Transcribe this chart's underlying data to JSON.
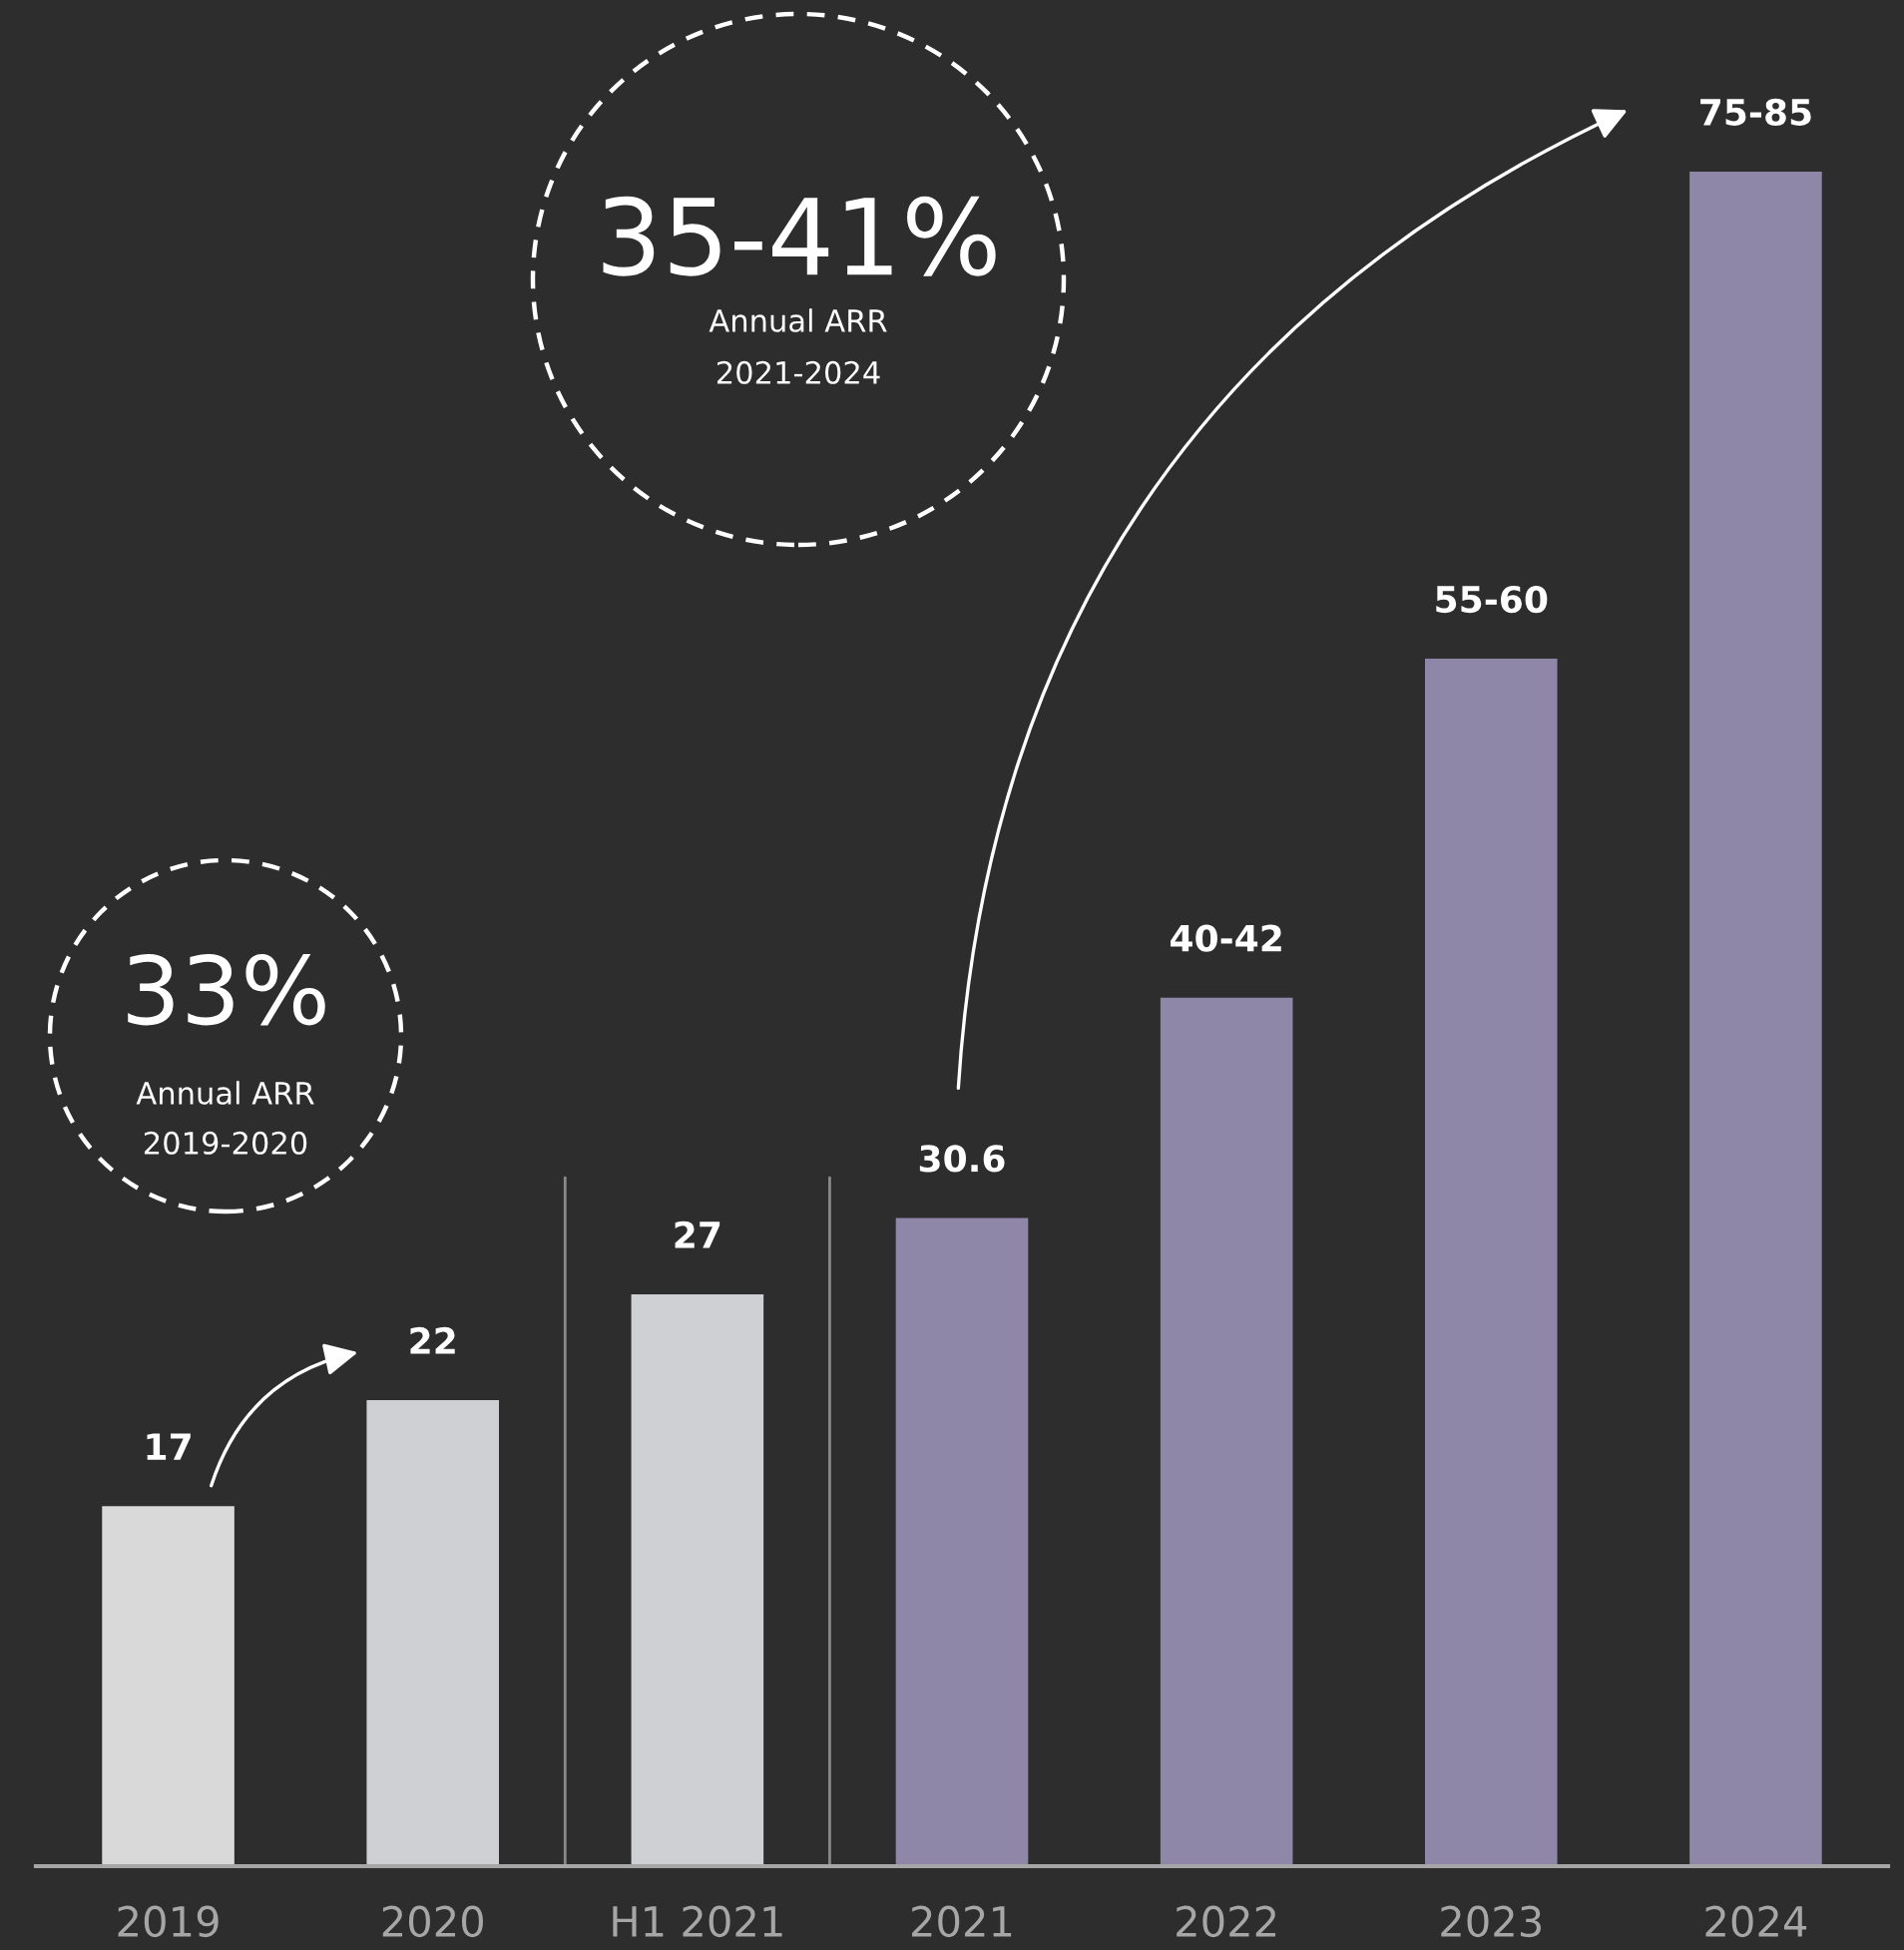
{
  "chart_data": {
    "type": "bar",
    "categories": [
      "2019",
      "2020",
      "H1 2021",
      "2021",
      "2022",
      "2023",
      "2024"
    ],
    "values": [
      17,
      22,
      27,
      30.6,
      41,
      57,
      80
    ],
    "value_labels": [
      "17",
      "22",
      "27",
      "30.6",
      "40-42",
      "55-60",
      "75-85"
    ],
    "colors": [
      "#d9d9d9",
      "#cfd0d3",
      "#cfd0d3",
      "#8e87a7",
      "#8e87a7",
      "#8e87a7",
      "#8e87a7"
    ],
    "annotations": [
      "33%",
      "Annual ARR",
      "2019-2020",
      "35-41%",
      "Annual ARR",
      "2021-2024"
    ],
    "grid": false
  }
}
